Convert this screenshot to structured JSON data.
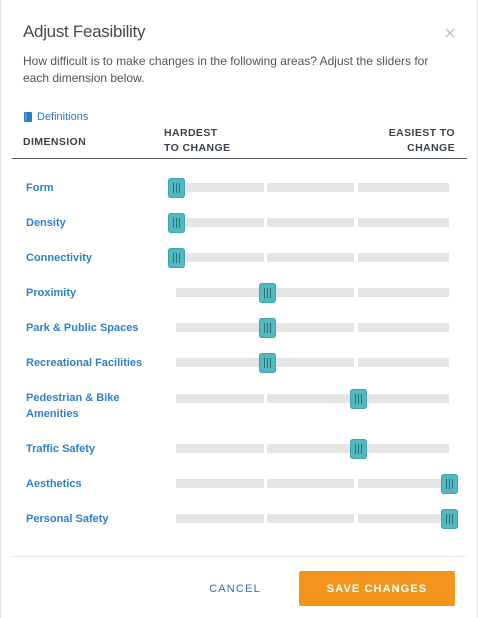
{
  "modal": {
    "title": "Adjust Feasibility",
    "intro": "How difficult is to make changes in the following areas? Adjust the sliders for each dimension below.",
    "definitions_label": "Definitions"
  },
  "table": {
    "dimension_header": "DIMENSION",
    "hardest_line1": "HARDEST",
    "hardest_line2": "TO CHANGE",
    "easiest_line1": "EASIEST TO",
    "easiest_line2": "CHANGE"
  },
  "slider_scale": {
    "min": 0,
    "max": 3,
    "steps": 4
  },
  "dimensions": [
    {
      "label": "Form",
      "value": 0
    },
    {
      "label": "Density",
      "value": 0
    },
    {
      "label": "Connectivity",
      "value": 0
    },
    {
      "label": "Proximity",
      "value": 1
    },
    {
      "label": "Park & Public Spaces",
      "value": 1
    },
    {
      "label": "Recreational Facilities",
      "value": 1
    },
    {
      "label": "Pedestrian & Bike Amenities",
      "value": 2
    },
    {
      "label": "Traffic Safety",
      "value": 2
    },
    {
      "label": "Aesthetics",
      "value": 3
    },
    {
      "label": "Personal Safety",
      "value": 3
    }
  ],
  "footer": {
    "cancel_label": "CANCEL",
    "save_label": "SAVE CHANGES"
  },
  "colors": {
    "accent": "#52b8c2",
    "link": "#2f80c9",
    "primary_button": "#f3941c",
    "track": "#e5e5e5"
  }
}
